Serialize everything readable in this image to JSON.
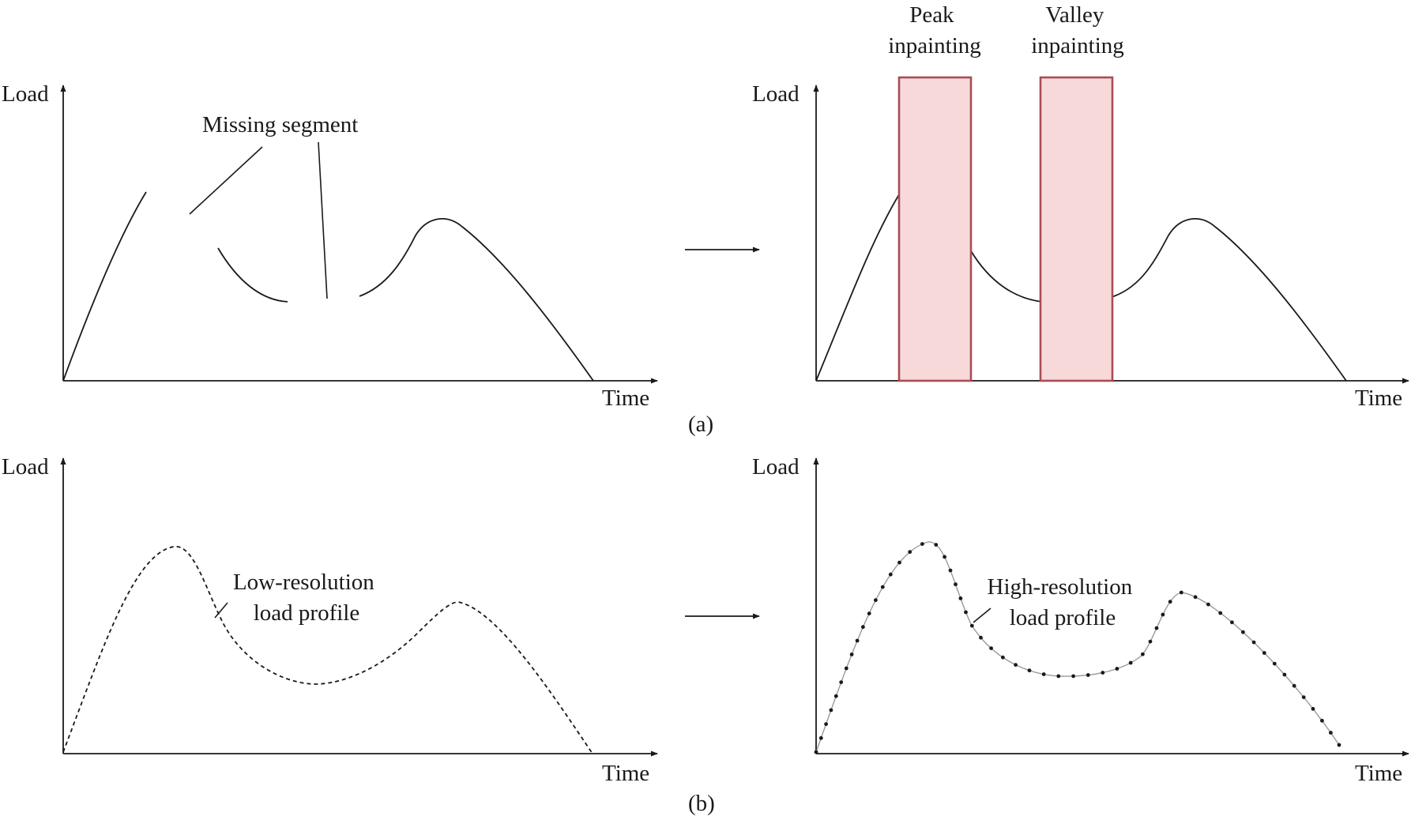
{
  "panel_a": {
    "caption": "(a)",
    "left": {
      "y_label": "Load",
      "x_label": "Time",
      "annotation": "Missing segment"
    },
    "right": {
      "y_label": "Load",
      "x_label": "Time",
      "box1_label": [
        "Peak",
        "inpainting"
      ],
      "box2_label": [
        "Valley",
        "inpainting"
      ]
    }
  },
  "panel_b": {
    "caption": "(b)",
    "left": {
      "y_label": "Load",
      "x_label": "Time",
      "annotation": [
        "Low-resolution",
        "load profile"
      ]
    },
    "right": {
      "y_label": "Load",
      "x_label": "Time",
      "annotation": [
        "High-resolution",
        "load profile"
      ]
    }
  },
  "colors": {
    "box_fill": "#f8d9d9",
    "box_border": "#a94c55",
    "ink": "#1a1a1a",
    "fine_line": "#9a9a9a"
  }
}
